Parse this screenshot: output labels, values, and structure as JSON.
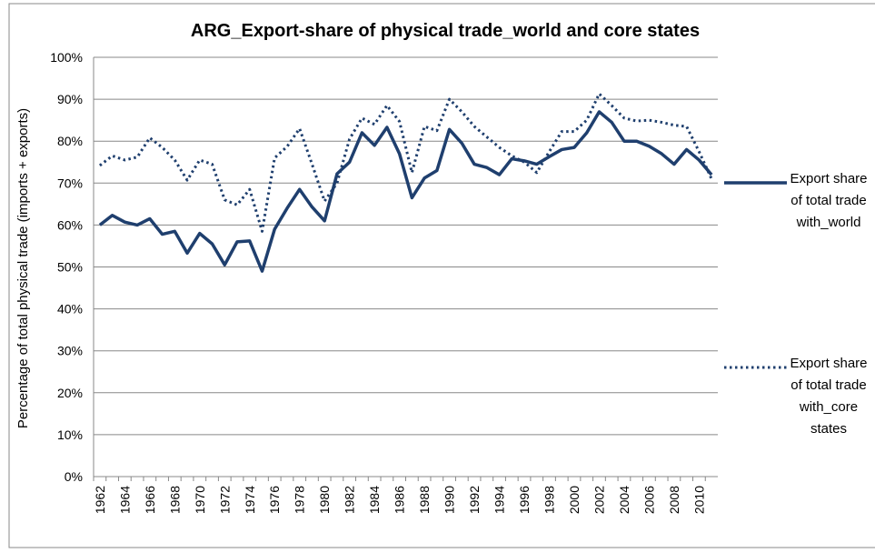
{
  "chart_data": {
    "type": "line",
    "title": "ARG_Export-share of physical trade_world and core states",
    "y_label": "Percentage of total physical trade (imports + exports)",
    "categories": [
      "1962",
      null,
      "1964",
      null,
      "1966",
      null,
      "1968",
      null,
      "1970",
      null,
      "1972",
      null,
      "1974",
      null,
      "1976",
      null,
      "1978",
      null,
      "1980",
      null,
      "1982",
      null,
      "1984",
      null,
      "1986",
      null,
      "1988",
      null,
      "1990",
      null,
      "1992",
      null,
      "1994",
      null,
      "1996",
      null,
      "1998",
      null,
      "2000",
      null,
      "2002",
      null,
      "2004",
      null,
      "2006",
      null,
      "2008",
      null,
      "2010",
      null
    ],
    "series": [
      {
        "name": "Export share of total trade with_world",
        "color": "#1f3f6e",
        "style": "solid",
        "values": [
          60,
          62.3,
          60.7,
          60,
          61.5,
          57.8,
          58.5,
          53.3,
          58,
          55.5,
          50.5,
          56,
          56.2,
          49,
          59,
          64,
          68.5,
          64.3,
          61,
          72.2,
          75,
          82,
          79,
          83.3,
          77,
          66.5,
          71.2,
          73,
          82.8,
          79.5,
          74.5,
          73.7,
          72,
          75.8,
          75.3,
          74.5,
          76.3,
          78,
          78.5,
          82,
          87,
          84.5,
          80,
          80,
          78.8,
          77,
          74.5,
          78,
          75.5,
          72
        ]
      },
      {
        "name": "Export share of total trade with_core states",
        "color": "#1f3f6e",
        "style": "dotted",
        "values": [
          74.2,
          76.5,
          75.5,
          76.2,
          80.8,
          78.5,
          75.5,
          70.7,
          75.5,
          74.5,
          66,
          64.8,
          68.5,
          58.5,
          76,
          78.7,
          83,
          74.5,
          65.7,
          70,
          80.5,
          85.5,
          84,
          88.5,
          84.7,
          72.5,
          83.5,
          82.5,
          90,
          87,
          83.5,
          81,
          78.5,
          76.5,
          75,
          72.5,
          77.5,
          82.3,
          82.3,
          85,
          91.3,
          88.5,
          85.5,
          84.8,
          85,
          84.5,
          83.8,
          83.5,
          77.5,
          71
        ]
      }
    ],
    "ylim": [
      0,
      100
    ],
    "yticks": [
      {
        "value": 0,
        "label": "0%"
      },
      {
        "value": 10,
        "label": "10%"
      },
      {
        "value": 20,
        "label": "20%"
      },
      {
        "value": 30,
        "label": "30%"
      },
      {
        "value": 40,
        "label": "40%"
      },
      {
        "value": 50,
        "label": "50%"
      },
      {
        "value": 60,
        "label": "60%"
      },
      {
        "value": 70,
        "label": "70%"
      },
      {
        "value": 80,
        "label": "80%"
      },
      {
        "value": 90,
        "label": "90%"
      },
      {
        "value": 100,
        "label": "100%"
      }
    ],
    "grid": true,
    "legend": "right"
  }
}
